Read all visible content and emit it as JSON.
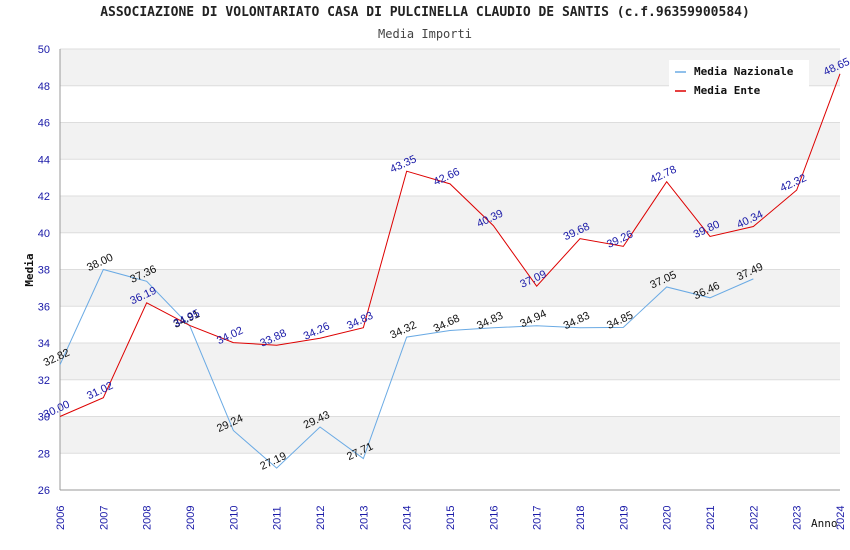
{
  "chart_data": {
    "type": "line",
    "title": "ASSOCIAZIONE DI VOLONTARIATO CASA DI PULCINELLA CLAUDIO DE SANTIS (c.f.96359900584)",
    "subtitle": "Media Importi",
    "xlabel": "Anno",
    "ylabel": "Media",
    "ylim": [
      26,
      50
    ],
    "yticks": [
      "26",
      "28",
      "30",
      "32",
      "34",
      "36",
      "38",
      "40",
      "42",
      "44",
      "46",
      "48",
      "50"
    ],
    "categories": [
      "2006",
      "2007",
      "2008",
      "2009",
      "2010",
      "2011",
      "2012",
      "2013",
      "2014",
      "2015",
      "2016",
      "2017",
      "2018",
      "2019",
      "2020",
      "2021",
      "2022",
      "2023",
      "2024"
    ],
    "grid": true,
    "legend_position": "top-right",
    "series": [
      {
        "name": "Media Nazionale",
        "color": "#6aaae4",
        "values": [
          32.82,
          38.0,
          37.36,
          34.91,
          29.24,
          27.19,
          29.43,
          27.71,
          34.32,
          34.68,
          34.83,
          34.94,
          34.83,
          34.85,
          37.05,
          36.46,
          37.49,
          null,
          null
        ],
        "labels": [
          "32.82",
          "38.00",
          "37.36",
          "34.91",
          "29.24",
          "27.19",
          "29.43",
          "27.71",
          "34.32",
          "34.68",
          "34.83",
          "34.94",
          "34.83",
          "34.85",
          "37.05",
          "36.46",
          "37.49",
          "",
          ""
        ]
      },
      {
        "name": "Media Ente",
        "color": "#dd0000",
        "values": [
          30.0,
          31.02,
          36.19,
          34.95,
          34.02,
          33.88,
          34.26,
          34.83,
          43.35,
          42.66,
          40.39,
          37.09,
          39.68,
          39.26,
          42.78,
          39.8,
          40.34,
          42.32,
          48.65
        ],
        "labels": [
          "30.00",
          "31.02",
          "36.19",
          "34.95",
          "34.02",
          "33.88",
          "34.26",
          "34.83",
          "43.35",
          "42.66",
          "40.39",
          "37.09",
          "39.68",
          "39.26",
          "42.78",
          "39.80",
          "40.34",
          "42.32",
          "48.65"
        ]
      }
    ]
  }
}
